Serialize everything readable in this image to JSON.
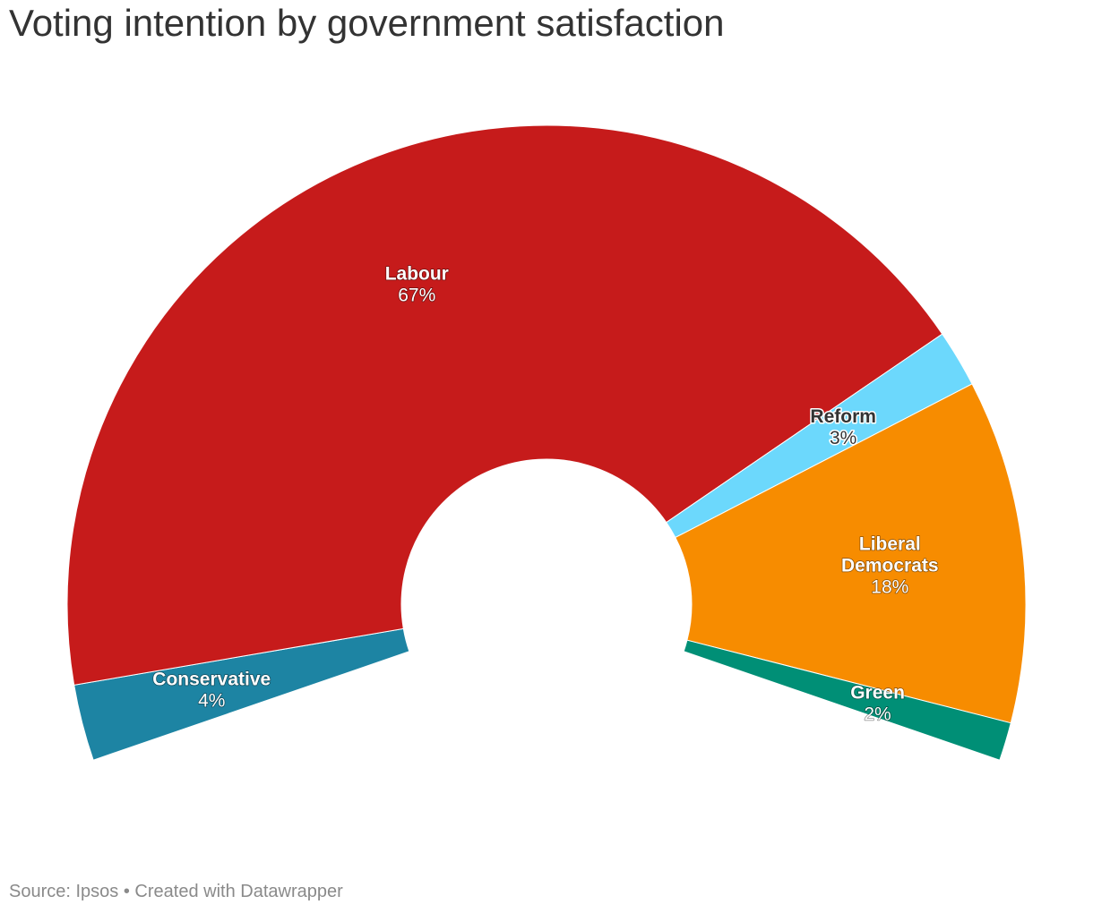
{
  "title": "Voting intention by government satisfaction",
  "footer": {
    "source": "Source: Ipsos",
    "separator": " • ",
    "credit": "Created with Datawrapper"
  },
  "chart_data": {
    "type": "pie",
    "title": "Voting intention by government satisfaction",
    "style": "semi-donut",
    "slices": [
      {
        "label": "Conservative",
        "value": 4,
        "value_label": "4%",
        "color": "#1d84a3",
        "text_color": "#ffffff"
      },
      {
        "label": "Labour",
        "value": 67,
        "value_label": "67%",
        "color": "#c61b1b",
        "text_color": "#ffffff"
      },
      {
        "label": "Reform",
        "value": 3,
        "value_label": "3%",
        "color": "#6cd8fc",
        "text_color": "#333333"
      },
      {
        "label": "Liberal Democrats",
        "label_lines": [
          "Liberal",
          "Democrats"
        ],
        "value": 18,
        "value_label": "18%",
        "color": "#f78c00",
        "text_color": "#ffffff"
      },
      {
        "label": "Green",
        "value": 2,
        "value_label": "2%",
        "color": "#008f76",
        "text_color": "#ffffff"
      }
    ]
  }
}
